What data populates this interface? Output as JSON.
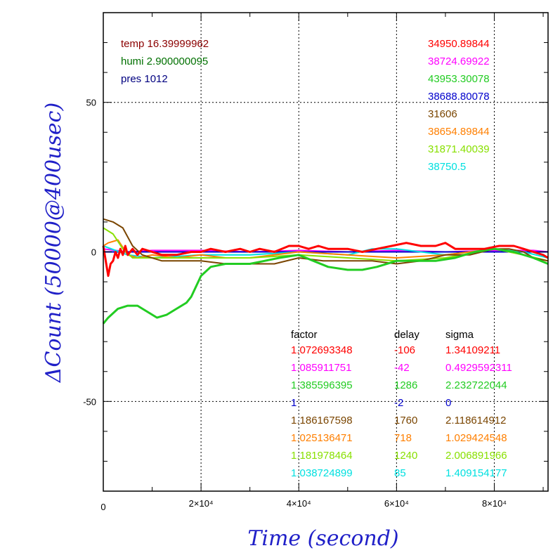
{
  "chart_data": {
    "type": "line",
    "title": "",
    "xlabel": "Time (second)",
    "ylabel": "ΔCount (50000@400usec)",
    "xlim": [
      0,
      91000
    ],
    "ylim": [
      -80,
      80
    ],
    "grid": true,
    "x_ticks": [
      {
        "value": 0,
        "label": "0"
      },
      {
        "value": 20000,
        "label": "2×10⁴"
      },
      {
        "value": 40000,
        "label": "4×10⁴"
      },
      {
        "value": 60000,
        "label": "6×10⁴"
      },
      {
        "value": 80000,
        "label": "8×10⁴"
      }
    ],
    "y_ticks": [
      {
        "value": 50,
        "label": "50"
      },
      {
        "value": 0,
        "label": "0"
      },
      {
        "value": -50,
        "label": "-50"
      }
    ],
    "env": [
      {
        "text": "temp 16.39999962",
        "color": "#8b0000"
      },
      {
        "text": "humi 2.900000095",
        "color": "#007000"
      },
      {
        "text": "pres 1012",
        "color": "#000080"
      }
    ],
    "counts": [
      {
        "text": "34950.89844",
        "color": "#ff0000"
      },
      {
        "text": "38724.69922",
        "color": "#ff00ff"
      },
      {
        "text": "43953.30078",
        "color": "#22cc22"
      },
      {
        "text": "38688.80078",
        "color": "#0000cc"
      },
      {
        "text": "31606",
        "color": "#7a4500"
      },
      {
        "text": "38654.89844",
        "color": "#ff7f00"
      },
      {
        "text": "31871.40039",
        "color": "#88e000"
      },
      {
        "text": "38750.5",
        "color": "#00e0e0"
      }
    ],
    "table_header": {
      "factor": "factor",
      "delay": "delay",
      "sigma": "sigma"
    },
    "table_rows": [
      {
        "factor": "1.072693348",
        "delay": "-106",
        "sigma": "1.34109211",
        "color": "#ff0000"
      },
      {
        "factor": "1.085911751",
        "delay": "-42",
        "sigma": "0.4929592311",
        "color": "#ff00ff"
      },
      {
        "factor": "1.385596395",
        "delay": "1286",
        "sigma": "2.232722044",
        "color": "#22cc22"
      },
      {
        "factor": "1",
        "delay": "-2",
        "sigma": "0",
        "color": "#0000cc"
      },
      {
        "factor": "1.186167598",
        "delay": "1760",
        "sigma": "2.118614912",
        "color": "#7a4500"
      },
      {
        "factor": "1.025136471",
        "delay": "718",
        "sigma": "1.029424548",
        "color": "#ff7f00"
      },
      {
        "factor": "1.181978464",
        "delay": "1240",
        "sigma": "2.006891966",
        "color": "#88e000"
      },
      {
        "factor": "1.038724899",
        "delay": "85",
        "sigma": "1.409154177",
        "color": "#00e0e0"
      }
    ],
    "series": [
      {
        "color": "#ff00ff",
        "values": [
          [
            0,
            1
          ],
          [
            5000,
            0
          ],
          [
            10000,
            0.5
          ],
          [
            20000,
            0.5
          ],
          [
            30000,
            0
          ],
          [
            40000,
            0.5
          ],
          [
            50000,
            0
          ],
          [
            60000,
            0.5
          ],
          [
            70000,
            0
          ],
          [
            80000,
            0.5
          ],
          [
            88000,
            0.5
          ],
          [
            91000,
            0
          ]
        ]
      },
      {
        "color": "#0000cc",
        "values": [
          [
            0,
            0
          ],
          [
            20000,
            0
          ],
          [
            40000,
            0
          ],
          [
            60000,
            0
          ],
          [
            80000,
            0
          ],
          [
            91000,
            0
          ]
        ]
      },
      {
        "color": "#00e0e0",
        "values": [
          [
            0,
            2
          ],
          [
            5000,
            -1
          ],
          [
            10000,
            -2
          ],
          [
            20000,
            -1
          ],
          [
            30000,
            -1
          ],
          [
            40000,
            0
          ],
          [
            50000,
            -1
          ],
          [
            55000,
            1
          ],
          [
            60000,
            1
          ],
          [
            65000,
            0
          ],
          [
            70000,
            -1
          ],
          [
            80000,
            1
          ],
          [
            86000,
            0
          ],
          [
            91000,
            -2
          ]
        ]
      },
      {
        "color": "#ff7f00",
        "values": [
          [
            0,
            2
          ],
          [
            1000,
            3
          ],
          [
            3000,
            4
          ],
          [
            5000,
            -1
          ],
          [
            7000,
            -2
          ],
          [
            10000,
            -1
          ],
          [
            15000,
            -2
          ],
          [
            20000,
            -1
          ],
          [
            25000,
            -2
          ],
          [
            30000,
            -2
          ],
          [
            40000,
            0
          ],
          [
            50000,
            -1
          ],
          [
            60000,
            -2
          ],
          [
            70000,
            -1
          ],
          [
            80000,
            1
          ],
          [
            86000,
            -1
          ],
          [
            91000,
            -3
          ]
        ]
      },
      {
        "color": "#88e000",
        "values": [
          [
            0,
            8
          ],
          [
            2000,
            6
          ],
          [
            4000,
            1
          ],
          [
            6000,
            -2
          ],
          [
            10000,
            -2
          ],
          [
            20000,
            -2
          ],
          [
            30000,
            -2
          ],
          [
            40000,
            -1
          ],
          [
            50000,
            -2
          ],
          [
            60000,
            -3
          ],
          [
            70000,
            -2
          ],
          [
            80000,
            1
          ],
          [
            86000,
            -1
          ],
          [
            91000,
            -3
          ]
        ]
      },
      {
        "color": "#7a4500",
        "values": [
          [
            0,
            11
          ],
          [
            2000,
            10
          ],
          [
            4000,
            8
          ],
          [
            6000,
            2
          ],
          [
            8000,
            -1
          ],
          [
            12000,
            -3
          ],
          [
            20000,
            -3
          ],
          [
            25000,
            -4
          ],
          [
            30000,
            -4
          ],
          [
            35000,
            -4
          ],
          [
            40000,
            -2
          ],
          [
            45000,
            -3
          ],
          [
            50000,
            -3
          ],
          [
            55000,
            -3
          ],
          [
            60000,
            -4
          ],
          [
            65000,
            -3
          ],
          [
            70000,
            -1
          ],
          [
            75000,
            -1
          ],
          [
            80000,
            1
          ],
          [
            83000,
            1
          ],
          [
            86000,
            0
          ],
          [
            88000,
            -2
          ],
          [
            91000,
            -3
          ]
        ]
      },
      {
        "color": "#22cc22",
        "values": [
          [
            0,
            -24
          ],
          [
            1000,
            -22
          ],
          [
            3000,
            -19
          ],
          [
            5000,
            -18
          ],
          [
            7000,
            -18
          ],
          [
            9000,
            -20
          ],
          [
            11000,
            -22
          ],
          [
            13000,
            -21
          ],
          [
            15000,
            -19
          ],
          [
            17000,
            -17
          ],
          [
            18000,
            -15
          ],
          [
            20000,
            -8
          ],
          [
            22000,
            -5
          ],
          [
            25000,
            -4
          ],
          [
            30000,
            -4
          ],
          [
            33000,
            -3
          ],
          [
            36000,
            -2
          ],
          [
            40000,
            -1
          ],
          [
            43000,
            -3
          ],
          [
            46000,
            -5
          ],
          [
            50000,
            -6
          ],
          [
            53000,
            -6
          ],
          [
            56000,
            -5
          ],
          [
            60000,
            -3
          ],
          [
            64000,
            -3
          ],
          [
            68000,
            -3
          ],
          [
            72000,
            -2
          ],
          [
            76000,
            0
          ],
          [
            80000,
            1
          ],
          [
            84000,
            0
          ],
          [
            88000,
            -2
          ],
          [
            91000,
            -4
          ]
        ]
      },
      {
        "color": "#ff0000",
        "values": [
          [
            0,
            2
          ],
          [
            500,
            -3
          ],
          [
            1000,
            -8
          ],
          [
            1500,
            -4
          ],
          [
            2000,
            -3
          ],
          [
            2500,
            0
          ],
          [
            3000,
            -2
          ],
          [
            3500,
            1
          ],
          [
            4000,
            -1
          ],
          [
            4500,
            2
          ],
          [
            5000,
            -1
          ],
          [
            6000,
            1
          ],
          [
            7000,
            -1
          ],
          [
            8000,
            1
          ],
          [
            10000,
            0
          ],
          [
            12000,
            -1
          ],
          [
            15000,
            -1
          ],
          [
            18000,
            0
          ],
          [
            20000,
            0
          ],
          [
            22000,
            1
          ],
          [
            25000,
            0
          ],
          [
            28000,
            1
          ],
          [
            30000,
            0
          ],
          [
            32000,
            1
          ],
          [
            35000,
            0
          ],
          [
            38000,
            2
          ],
          [
            40000,
            2
          ],
          [
            42000,
            1
          ],
          [
            44000,
            2
          ],
          [
            46000,
            1
          ],
          [
            48000,
            1
          ],
          [
            50000,
            1
          ],
          [
            53000,
            0
          ],
          [
            56000,
            1
          ],
          [
            59000,
            2
          ],
          [
            62000,
            3
          ],
          [
            65000,
            2
          ],
          [
            68000,
            2
          ],
          [
            70000,
            3
          ],
          [
            72000,
            1
          ],
          [
            75000,
            1
          ],
          [
            78000,
            1
          ],
          [
            81000,
            2
          ],
          [
            84000,
            2
          ],
          [
            86000,
            1
          ],
          [
            88000,
            0
          ],
          [
            90000,
            -1
          ],
          [
            91000,
            -2
          ]
        ]
      }
    ]
  }
}
